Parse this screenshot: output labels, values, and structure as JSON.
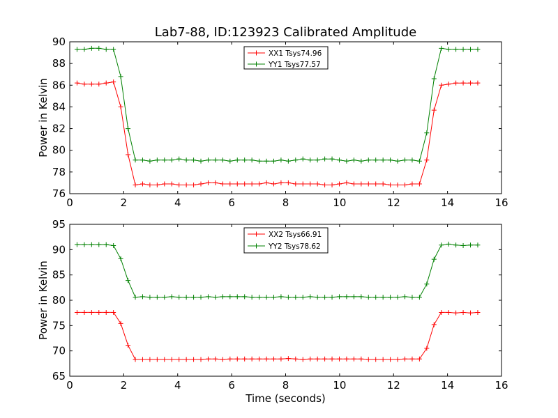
{
  "chart_data": [
    {
      "type": "line",
      "title": "Lab7-88, ID:123923 Calibrated Amplitude",
      "xlabel": "",
      "ylabel": "Power in Kelvin",
      "xlim": [
        0,
        16
      ],
      "ylim": [
        76,
        90
      ],
      "xticks": [
        "0",
        "2",
        "4",
        "6",
        "8",
        "10",
        "12",
        "14",
        "16"
      ],
      "yticks": [
        "76",
        "78",
        "80",
        "82",
        "84",
        "86",
        "88",
        "90"
      ],
      "legend_position": "top-center",
      "grid": false,
      "series": [
        {
          "name": "XX1 Tsys74.96",
          "color": "#ff0000",
          "x": [
            0.27,
            0.54,
            0.81,
            1.08,
            1.35,
            1.62,
            1.89,
            2.16,
            2.43,
            2.7,
            2.97,
            3.24,
            3.51,
            3.78,
            4.05,
            4.32,
            4.59,
            4.86,
            5.13,
            5.4,
            5.67,
            5.94,
            6.21,
            6.48,
            6.75,
            7.02,
            7.29,
            7.56,
            7.83,
            8.1,
            8.37,
            8.64,
            8.91,
            9.18,
            9.45,
            9.72,
            9.99,
            10.26,
            10.53,
            10.8,
            11.07,
            11.34,
            11.61,
            11.88,
            12.15,
            12.42,
            12.69,
            12.96,
            13.23,
            13.5,
            13.77,
            14.04,
            14.31,
            14.58,
            14.85,
            15.12
          ],
          "y": [
            86.2,
            86.1,
            86.1,
            86.1,
            86.2,
            86.3,
            84.0,
            79.6,
            76.8,
            76.9,
            76.8,
            76.8,
            76.9,
            76.9,
            76.8,
            76.8,
            76.8,
            76.9,
            77.0,
            77.0,
            76.9,
            76.9,
            76.9,
            76.9,
            76.9,
            76.9,
            77.0,
            76.9,
            77.0,
            77.0,
            76.9,
            76.9,
            76.9,
            76.9,
            76.8,
            76.8,
            76.9,
            77.0,
            76.9,
            76.9,
            76.9,
            76.9,
            76.9,
            76.8,
            76.8,
            76.8,
            76.9,
            76.9,
            79.1,
            83.7,
            86.0,
            86.1,
            86.2,
            86.2,
            86.2,
            86.2
          ]
        },
        {
          "name": "YY1 Tsys77.57",
          "color": "#008000",
          "x": [
            0.27,
            0.54,
            0.81,
            1.08,
            1.35,
            1.62,
            1.89,
            2.16,
            2.43,
            2.7,
            2.97,
            3.24,
            3.51,
            3.78,
            4.05,
            4.32,
            4.59,
            4.86,
            5.13,
            5.4,
            5.67,
            5.94,
            6.21,
            6.48,
            6.75,
            7.02,
            7.29,
            7.56,
            7.83,
            8.1,
            8.37,
            8.64,
            8.91,
            9.18,
            9.45,
            9.72,
            9.99,
            10.26,
            10.53,
            10.8,
            11.07,
            11.34,
            11.61,
            11.88,
            12.15,
            12.42,
            12.69,
            12.96,
            13.23,
            13.5,
            13.77,
            14.04,
            14.31,
            14.58,
            14.85,
            15.12
          ],
          "y": [
            89.3,
            89.3,
            89.4,
            89.4,
            89.3,
            89.3,
            86.8,
            82.0,
            79.1,
            79.1,
            79.0,
            79.1,
            79.1,
            79.1,
            79.2,
            79.1,
            79.1,
            79.0,
            79.1,
            79.1,
            79.1,
            79.0,
            79.1,
            79.1,
            79.1,
            79.0,
            79.0,
            79.0,
            79.1,
            79.0,
            79.1,
            79.2,
            79.1,
            79.1,
            79.2,
            79.2,
            79.1,
            79.0,
            79.1,
            79.0,
            79.1,
            79.1,
            79.1,
            79.1,
            79.0,
            79.1,
            79.1,
            79.0,
            81.6,
            86.6,
            89.4,
            89.3,
            89.3,
            89.3,
            89.3,
            89.3
          ]
        }
      ]
    },
    {
      "type": "line",
      "title": "",
      "xlabel": "Time (seconds)",
      "ylabel": "Power in Kelvin",
      "xlim": [
        0,
        16
      ],
      "ylim": [
        65,
        95
      ],
      "xticks": [
        "0",
        "2",
        "4",
        "6",
        "8",
        "10",
        "12",
        "14",
        "16"
      ],
      "yticks": [
        "65",
        "70",
        "75",
        "80",
        "85",
        "90",
        "95"
      ],
      "legend_position": "top-center",
      "grid": false,
      "series": [
        {
          "name": "XX2 Tsys66.91",
          "color": "#ff0000",
          "x": [
            0.27,
            0.54,
            0.81,
            1.08,
            1.35,
            1.62,
            1.89,
            2.16,
            2.43,
            2.7,
            2.97,
            3.24,
            3.51,
            3.78,
            4.05,
            4.32,
            4.59,
            4.86,
            5.13,
            5.4,
            5.67,
            5.94,
            6.21,
            6.48,
            6.75,
            7.02,
            7.29,
            7.56,
            7.83,
            8.1,
            8.37,
            8.64,
            8.91,
            9.18,
            9.45,
            9.72,
            9.99,
            10.26,
            10.53,
            10.8,
            11.07,
            11.34,
            11.61,
            11.88,
            12.15,
            12.42,
            12.69,
            12.96,
            13.23,
            13.5,
            13.77,
            14.04,
            14.31,
            14.58,
            14.85,
            15.12
          ],
          "y": [
            77.6,
            77.6,
            77.6,
            77.6,
            77.6,
            77.6,
            75.4,
            71.1,
            68.3,
            68.3,
            68.3,
            68.3,
            68.3,
            68.3,
            68.3,
            68.3,
            68.3,
            68.3,
            68.4,
            68.4,
            68.3,
            68.4,
            68.4,
            68.4,
            68.4,
            68.4,
            68.4,
            68.4,
            68.4,
            68.5,
            68.4,
            68.3,
            68.4,
            68.4,
            68.4,
            68.4,
            68.4,
            68.4,
            68.4,
            68.4,
            68.3,
            68.3,
            68.3,
            68.3,
            68.3,
            68.4,
            68.4,
            68.4,
            70.5,
            75.2,
            77.6,
            77.6,
            77.5,
            77.6,
            77.5,
            77.6
          ]
        },
        {
          "name": "YY2 Tsys78.62",
          "color": "#008000",
          "x": [
            0.27,
            0.54,
            0.81,
            1.08,
            1.35,
            1.62,
            1.89,
            2.16,
            2.43,
            2.7,
            2.97,
            3.24,
            3.51,
            3.78,
            4.05,
            4.32,
            4.59,
            4.86,
            5.13,
            5.4,
            5.67,
            5.94,
            6.21,
            6.48,
            6.75,
            7.02,
            7.29,
            7.56,
            7.83,
            8.1,
            8.37,
            8.64,
            8.91,
            9.18,
            9.45,
            9.72,
            9.99,
            10.26,
            10.53,
            10.8,
            11.07,
            11.34,
            11.61,
            11.88,
            12.15,
            12.42,
            12.69,
            12.96,
            13.23,
            13.5,
            13.77,
            14.04,
            14.31,
            14.58,
            14.85,
            15.12
          ],
          "y": [
            91.0,
            91.0,
            91.0,
            91.0,
            91.0,
            90.8,
            88.2,
            83.9,
            80.6,
            80.7,
            80.6,
            80.6,
            80.6,
            80.7,
            80.6,
            80.6,
            80.6,
            80.6,
            80.7,
            80.6,
            80.7,
            80.7,
            80.7,
            80.7,
            80.6,
            80.6,
            80.6,
            80.6,
            80.7,
            80.6,
            80.6,
            80.6,
            80.7,
            80.6,
            80.6,
            80.6,
            80.7,
            80.7,
            80.7,
            80.7,
            80.6,
            80.6,
            80.6,
            80.6,
            80.6,
            80.7,
            80.6,
            80.6,
            83.2,
            88.1,
            90.9,
            91.1,
            90.9,
            90.8,
            90.9,
            90.9
          ]
        }
      ]
    }
  ]
}
